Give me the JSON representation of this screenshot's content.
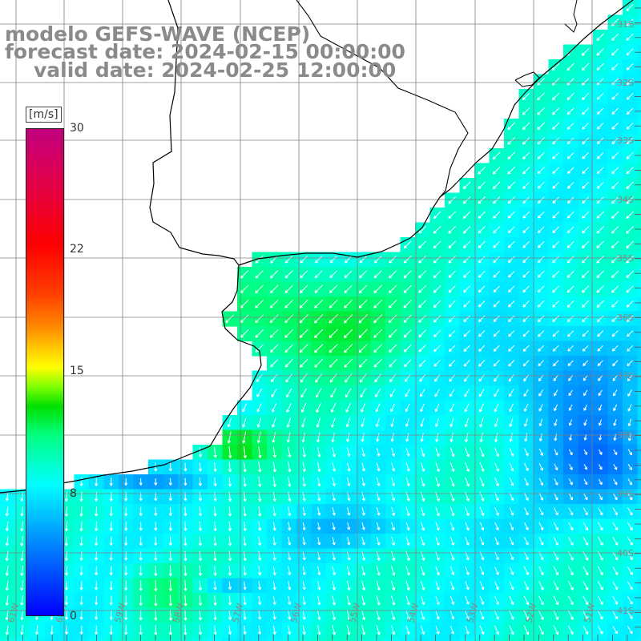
{
  "title": {
    "line1": "modelo GEFS-WAVE (NCEP)",
    "line2": "forecast date: 2024-02-15 00:00:00",
    "line3": "valid date: 2024-02-25 12:00:00"
  },
  "colorbar": {
    "unit": "[m/s]",
    "ticks": [
      "30",
      "22",
      "15",
      "8",
      "0"
    ],
    "stops": [
      "#0000ff",
      "#0080ff",
      "#00ffff",
      "#00ff80",
      "#00e000",
      "#7fff00",
      "#ffff00",
      "#ff8000",
      "#ff0000",
      "#c0007f"
    ]
  },
  "map": {
    "lat_labels": [
      "31S",
      "32S",
      "33S",
      "34S",
      "35S",
      "36S",
      "37S",
      "38S",
      "39S",
      "40S",
      "41S"
    ],
    "lon_labels": [
      "61W",
      "60W",
      "59W",
      "58W",
      "57W",
      "56W",
      "55W",
      "54W",
      "53W",
      "52W",
      "51W"
    ],
    "colors": {
      "land": "#ffffff",
      "coast": "#000000",
      "grid": "#808080",
      "arrow": "#ffffff"
    }
  }
}
